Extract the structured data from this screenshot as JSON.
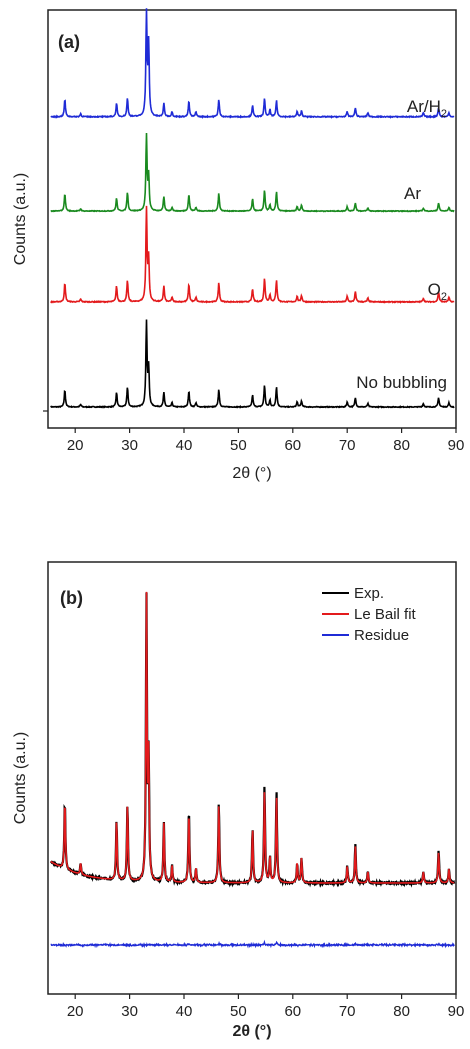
{
  "chart_data": [
    {
      "panel_label": "(a)",
      "type": "line",
      "xlabel": "2θ (°)",
      "ylabel": "Counts (a.u.)",
      "xlim": [
        15,
        90
      ],
      "x_ticks": [
        20,
        30,
        40,
        50,
        60,
        70,
        80,
        90
      ],
      "y_ticks_labeled": false,
      "legend": "none",
      "grid": false,
      "stacked_offsets": true,
      "series": [
        {
          "name": "No bubbling",
          "color": "#000000",
          "label_parts": [
            "No bubbling"
          ],
          "offset": 0,
          "peaks": [
            [
              18.1,
              20
            ],
            [
              21.0,
              3
            ],
            [
              27.6,
              17
            ],
            [
              29.6,
              23
            ],
            [
              33.1,
              100
            ],
            [
              33.5,
              45
            ],
            [
              36.3,
              17
            ],
            [
              37.8,
              5
            ],
            [
              40.9,
              19
            ],
            [
              42.2,
              5
            ],
            [
              46.4,
              21
            ],
            [
              52.6,
              14
            ],
            [
              54.8,
              26
            ],
            [
              55.8,
              8
            ],
            [
              57.0,
              24
            ],
            [
              60.8,
              6
            ],
            [
              61.6,
              7
            ],
            [
              70.0,
              6
            ],
            [
              71.5,
              11
            ],
            [
              73.8,
              4
            ],
            [
              84.0,
              4
            ],
            [
              86.8,
              11
            ],
            [
              88.7,
              5
            ]
          ]
        },
        {
          "name": "O2",
          "color": "#e31a1c",
          "label_parts": [
            "O",
            "2"
          ],
          "offset": 1,
          "peaks": [
            [
              18.1,
              20
            ],
            [
              21.0,
              3
            ],
            [
              27.6,
              17
            ],
            [
              29.6,
              23
            ],
            [
              33.1,
              100
            ],
            [
              33.5,
              45
            ],
            [
              36.3,
              17
            ],
            [
              37.8,
              5
            ],
            [
              40.9,
              19
            ],
            [
              42.2,
              5
            ],
            [
              46.4,
              21
            ],
            [
              52.6,
              14
            ],
            [
              54.8,
              26
            ],
            [
              55.8,
              8
            ],
            [
              57.0,
              24
            ],
            [
              60.8,
              6
            ],
            [
              61.6,
              7
            ],
            [
              70.0,
              6
            ],
            [
              71.5,
              11
            ],
            [
              73.8,
              4
            ],
            [
              84.0,
              4
            ],
            [
              86.8,
              11
            ],
            [
              88.7,
              5
            ]
          ]
        },
        {
          "name": "Ar",
          "color": "#1a8a1f",
          "label_parts": [
            "Ar"
          ],
          "offset": 2,
          "peaks": [
            [
              18.1,
              23
            ],
            [
              21.0,
              3
            ],
            [
              27.6,
              17
            ],
            [
              29.6,
              25
            ],
            [
              33.1,
              100
            ],
            [
              33.5,
              45
            ],
            [
              36.3,
              19
            ],
            [
              37.8,
              5
            ],
            [
              40.9,
              22
            ],
            [
              42.2,
              5
            ],
            [
              46.4,
              24
            ],
            [
              52.6,
              16
            ],
            [
              54.8,
              28
            ],
            [
              55.8,
              8
            ],
            [
              57.0,
              26
            ],
            [
              60.8,
              6
            ],
            [
              61.6,
              8
            ],
            [
              70.0,
              6
            ],
            [
              71.5,
              11
            ],
            [
              73.8,
              4
            ],
            [
              84.0,
              4
            ],
            [
              86.8,
              11
            ],
            [
              88.7,
              5
            ]
          ]
        },
        {
          "name": "Ar/H2",
          "color": "#1f2bd6",
          "label_parts": [
            "Ar/H",
            "2"
          ],
          "offset": 3,
          "peaks": [
            [
              18.1,
              17
            ],
            [
              21.0,
              3
            ],
            [
              27.6,
              13
            ],
            [
              29.6,
              18
            ],
            [
              33.1,
              100
            ],
            [
              33.5,
              70
            ],
            [
              36.3,
              13
            ],
            [
              37.8,
              5
            ],
            [
              40.9,
              15
            ],
            [
              42.2,
              5
            ],
            [
              46.4,
              17
            ],
            [
              52.6,
              11
            ],
            [
              54.8,
              18
            ],
            [
              55.8,
              7
            ],
            [
              57.0,
              16
            ],
            [
              60.8,
              5
            ],
            [
              61.6,
              6
            ],
            [
              70.0,
              5
            ],
            [
              71.5,
              9
            ],
            [
              73.8,
              4
            ],
            [
              84.0,
              4
            ],
            [
              86.8,
              9
            ],
            [
              88.7,
              4
            ]
          ]
        }
      ]
    },
    {
      "panel_label": "(b)",
      "type": "line",
      "xlabel": "2θ (°)",
      "ylabel": "Counts (a.u.)",
      "xlim": [
        15,
        90
      ],
      "x_ticks": [
        20,
        30,
        40,
        50,
        60,
        70,
        80,
        90
      ],
      "y_ticks_labeled": false,
      "legend": "top-right",
      "grid": false,
      "series": [
        {
          "name": "Exp.",
          "color": "#000000",
          "peaks": [
            [
              18.1,
              24
            ],
            [
              21.0,
              4
            ],
            [
              27.6,
              21
            ],
            [
              29.6,
              27
            ],
            [
              33.1,
              100
            ],
            [
              33.5,
              42
            ],
            [
              36.3,
              21
            ],
            [
              37.8,
              6
            ],
            [
              40.9,
              26
            ],
            [
              42.2,
              5
            ],
            [
              46.4,
              29
            ],
            [
              52.6,
              19
            ],
            [
              54.8,
              35
            ],
            [
              55.8,
              9
            ],
            [
              57.0,
              33
            ],
            [
              60.8,
              7
            ],
            [
              61.6,
              9
            ],
            [
              70.0,
              6
            ],
            [
              71.5,
              14
            ],
            [
              73.8,
              4
            ],
            [
              84.0,
              4
            ],
            [
              86.8,
              12
            ],
            [
              88.7,
              5
            ]
          ]
        },
        {
          "name": "Le Bail fit",
          "color": "#e31a1c",
          "peaks": [
            [
              18.1,
              24
            ],
            [
              21.0,
              4
            ],
            [
              27.6,
              21
            ],
            [
              29.6,
              27
            ],
            [
              33.1,
              100
            ],
            [
              33.5,
              42
            ],
            [
              36.3,
              21
            ],
            [
              37.8,
              6
            ],
            [
              40.9,
              25
            ],
            [
              42.2,
              5
            ],
            [
              46.4,
              28
            ],
            [
              52.6,
              19
            ],
            [
              54.8,
              33
            ],
            [
              55.8,
              9
            ],
            [
              57.0,
              31
            ],
            [
              60.8,
              7
            ],
            [
              61.6,
              9
            ],
            [
              70.0,
              6
            ],
            [
              71.5,
              13
            ],
            [
              73.8,
              4
            ],
            [
              84.0,
              4
            ],
            [
              86.8,
              11
            ],
            [
              88.7,
              5
            ]
          ]
        },
        {
          "name": "Residue",
          "color": "#1f2bd6",
          "residue": true
        }
      ]
    }
  ]
}
